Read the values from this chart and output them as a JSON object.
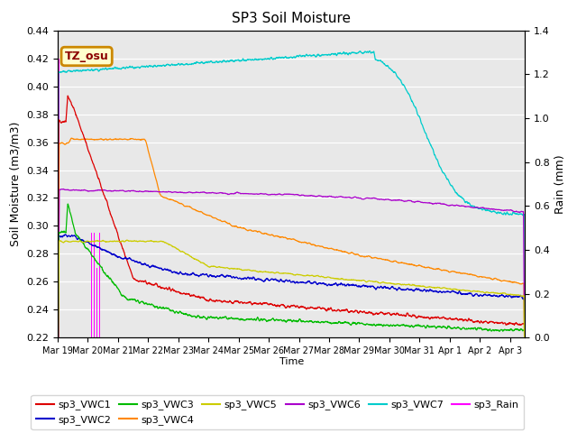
{
  "title": "SP3 Soil Moisture",
  "xlabel": "Time",
  "ylabel_left": "Soil Moisture (m3/m3)",
  "ylabel_right": "Rain (mm)",
  "ylim_left": [
    0.22,
    0.44
  ],
  "ylim_right": [
    0.0,
    1.4
  ],
  "background_color": "#e8e8e8",
  "annotation_text": "TZ_osu",
  "annotation_color": "#8b0000",
  "annotation_bg": "#ffffcc",
  "annotation_border": "#cc8800",
  "series_colors": {
    "sp3_VWC1": "#dd0000",
    "sp3_VWC2": "#0000cc",
    "sp3_VWC3": "#00bb00",
    "sp3_VWC4": "#ff8800",
    "sp3_VWC5": "#cccc00",
    "sp3_VWC6": "#aa00cc",
    "sp3_VWC7": "#00cccc",
    "sp3_Rain": "#ff00ff"
  },
  "xtick_labels": [
    "Mar 19",
    "Mar 20",
    "Mar 21",
    "Mar 22",
    "Mar 23",
    "Mar 24",
    "Mar 25",
    "Mar 26",
    "Mar 27",
    "Mar 28",
    "Mar 29",
    "Mar 30",
    "Mar 31",
    "Apr 1",
    "Apr 2",
    "Apr 3"
  ],
  "xtick_positions": [
    0,
    1,
    2,
    3,
    4,
    5,
    6,
    7,
    8,
    9,
    10,
    11,
    12,
    13,
    14,
    15
  ]
}
